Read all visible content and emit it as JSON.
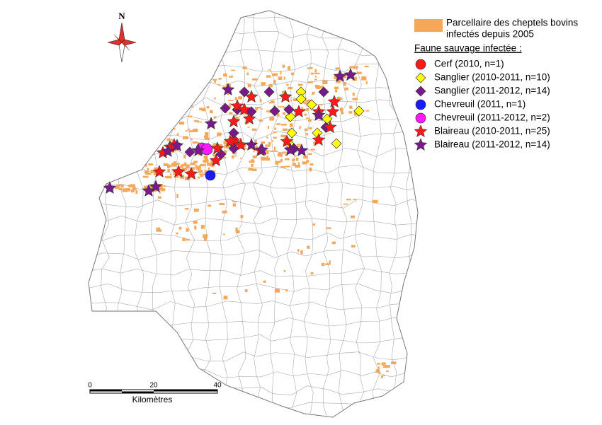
{
  "north": "N",
  "legend": {
    "parcel_label": [
      "Parcellaire des cheptels bovins",
      "infectés depuis 2005"
    ],
    "parcel_color": "#f5a85a",
    "wildlife_title": "Faune sauvage infectée :",
    "items": [
      {
        "label": "Cerf (2010, n=1)",
        "color": "#ff1a1a",
        "shape": "circle"
      },
      {
        "label": "Sanglier (2010-2011, n=10)",
        "color": "#ffff00",
        "shape": "diamond"
      },
      {
        "label": "Sanglier (2011-2012, n=14)",
        "color": "#7a1a8a",
        "shape": "diamond"
      },
      {
        "label": "Chevreuil (2011, n=1)",
        "color": "#1a1aff",
        "shape": "circle"
      },
      {
        "label": "Chevreuil (2011-2012, n=2)",
        "color": "#ff1aff",
        "shape": "circle"
      },
      {
        "label": "Blaireau (2010-2011, n=25)",
        "color": "#ff1a1a",
        "shape": "star"
      },
      {
        "label": "Blaireau (2011-2012, n=14)",
        "color": "#7a1a8a",
        "shape": "star"
      }
    ]
  },
  "scale": {
    "ticks": [
      0,
      20,
      40
    ],
    "unit": "Kilomètres"
  }
}
